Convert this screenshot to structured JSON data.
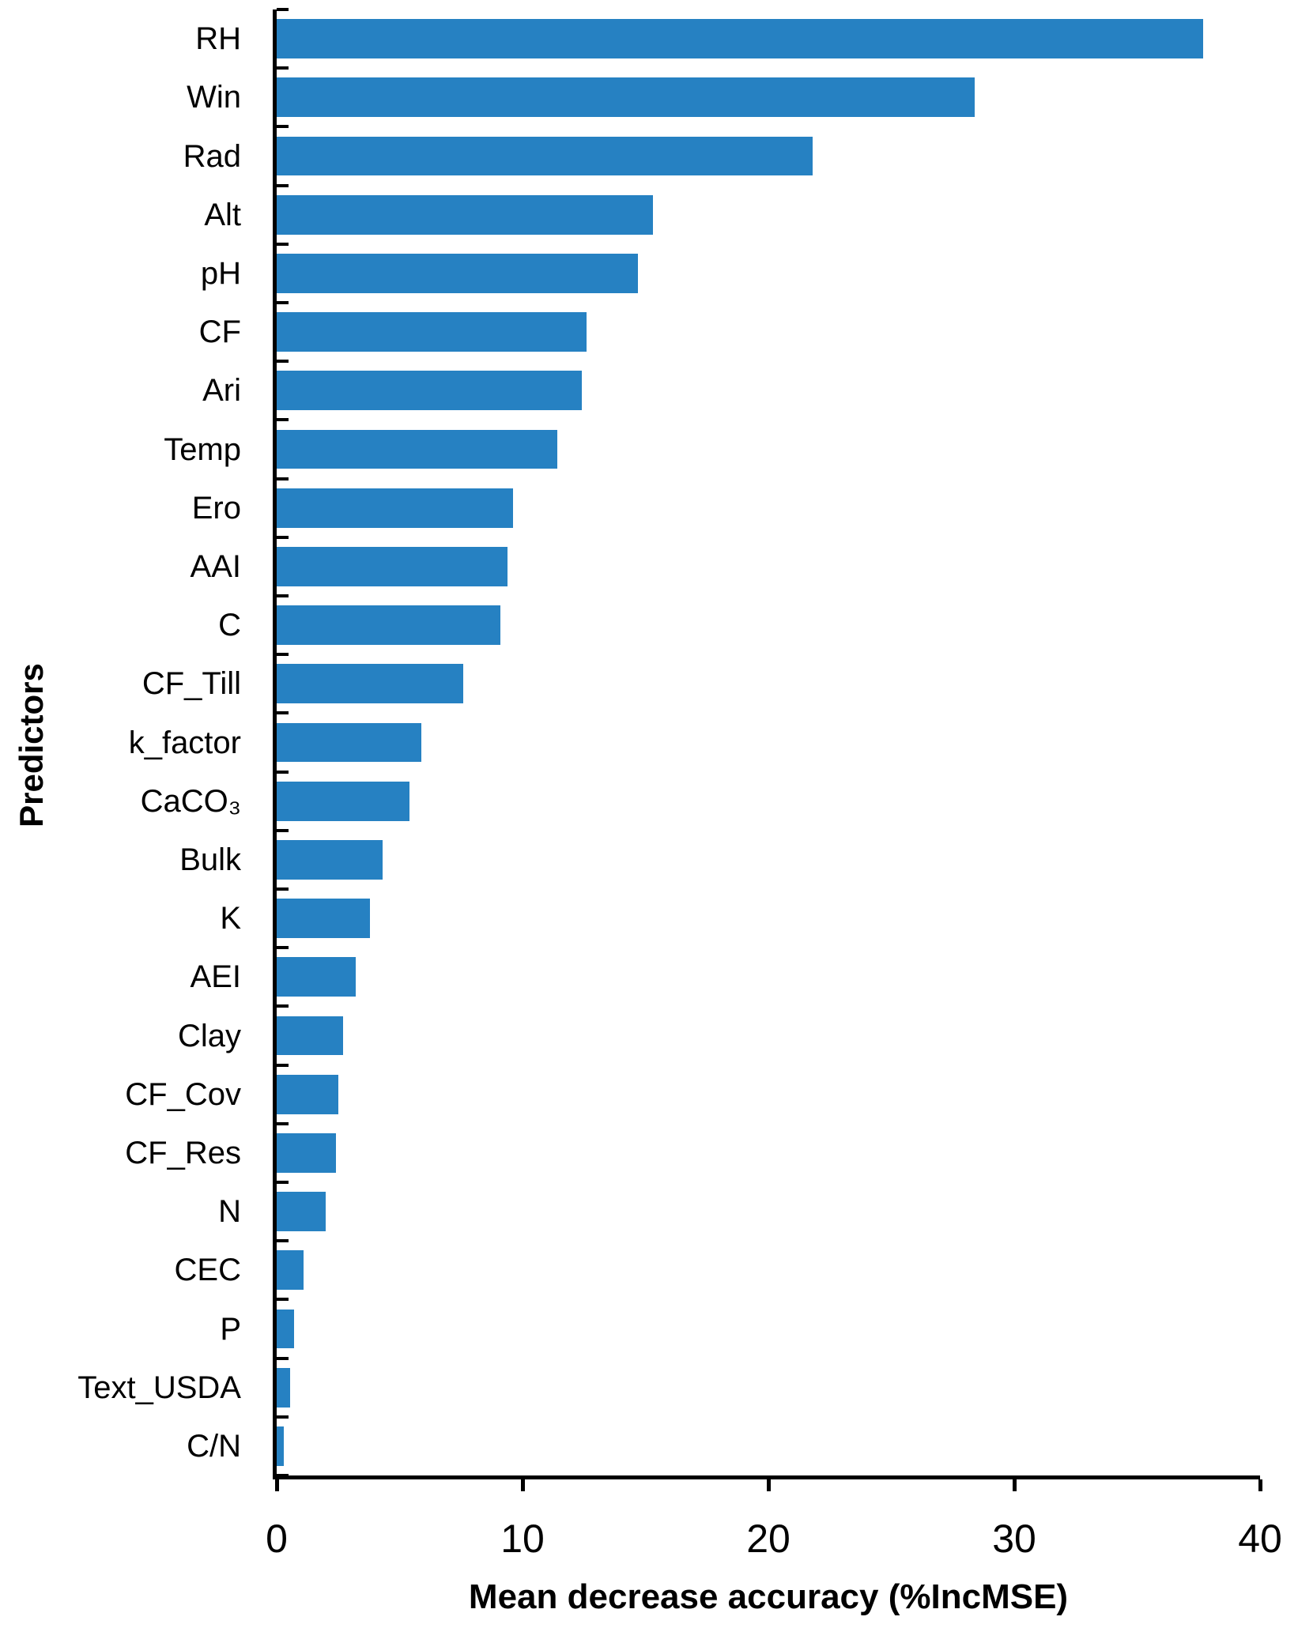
{
  "chart_data": {
    "type": "bar",
    "orientation": "horizontal",
    "title": "",
    "xlabel": "Mean decrease accuracy (%IncMSE)",
    "ylabel": "Predictors",
    "xlim": [
      0,
      40
    ],
    "xticks": [
      0,
      10,
      20,
      30,
      40
    ],
    "xtick_labels": [
      "0",
      "10",
      "20",
      "30",
      "40"
    ],
    "grid": false,
    "legend": null,
    "bar_color": "#2681c2",
    "axis_color": "#000000",
    "categories": [
      "RH",
      "Win",
      "Rad",
      "Alt",
      "pH",
      "CF",
      "Ari",
      "Temp",
      "Ero",
      "AAI",
      "C",
      "CF_Till",
      "k_factor",
      "CaCO₃",
      "Bulk",
      "K",
      "AEI",
      "Clay",
      "CF_Cov",
      "CF_Res",
      "N",
      "CEC",
      "P",
      "Text_USDA",
      "C/N"
    ],
    "values": [
      37.7,
      28.4,
      21.8,
      15.3,
      14.7,
      12.6,
      12.4,
      11.4,
      9.6,
      9.4,
      9.1,
      7.6,
      5.9,
      5.4,
      4.3,
      3.8,
      3.2,
      2.7,
      2.5,
      2.4,
      2.0,
      1.1,
      0.7,
      0.55,
      0.3
    ]
  }
}
